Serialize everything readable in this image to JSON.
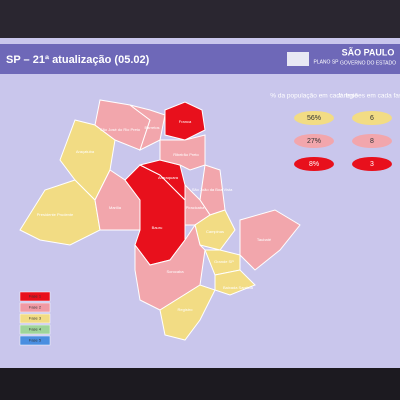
{
  "header": {
    "title": "SP – 21ª atualização (05.02)",
    "logo_plano": "PLANO SP",
    "logo_gov": "SÃO PAULO",
    "logo_gov_sub": "GOVERNO DO ESTADO"
  },
  "table": {
    "headers": [
      "% da população em cada fase",
      "# regiões em cada fase"
    ],
    "rows": [
      {
        "pop": "56%",
        "regions": "6",
        "color": "#f2dc84"
      },
      {
        "pop": "27%",
        "regions": "8",
        "color": "#f2a6ac"
      },
      {
        "pop": "8%",
        "regions": "3",
        "color": "#e8101c"
      }
    ]
  },
  "legend": [
    {
      "label": "Fase 1",
      "color": "#e8101c"
    },
    {
      "label": "Fase 2",
      "color": "#f09aa4"
    },
    {
      "label": "Fase 3",
      "color": "#f2dc84"
    },
    {
      "label": "Fase 4",
      "color": "#9ed49a"
    },
    {
      "label": "Fase 5",
      "color": "#4a8ee0"
    }
  ],
  "regions": [
    {
      "label": "Presidente Prudente",
      "color": "#f2dc84"
    },
    {
      "label": "Araçatuba",
      "color": "#f2dc84"
    },
    {
      "label": "São José do Rio Preto",
      "color": "#f2a6ac"
    },
    {
      "label": "Barretos",
      "color": "#f2a6ac"
    },
    {
      "label": "Franca",
      "color": "#e8101c"
    },
    {
      "label": "Marília",
      "color": "#f2a6ac"
    },
    {
      "label": "Bauru",
      "color": "#e8101c"
    },
    {
      "label": "Araraquara",
      "color": "#e8101c"
    },
    {
      "label": "Ribeirão Preto",
      "color": "#f2a6ac"
    },
    {
      "label": "São João da Boa Vista",
      "color": "#f2a6ac"
    },
    {
      "label": "Piracicaba",
      "color": "#f2a6ac"
    },
    {
      "label": "Campinas",
      "color": "#f2dc84"
    },
    {
      "label": "Taubaté",
      "color": "#f2a6ac"
    },
    {
      "label": "Grande SP",
      "color": "#f2dc84"
    },
    {
      "label": "Sorocaba",
      "color": "#f2a6ac"
    },
    {
      "label": "Registro",
      "color": "#f2dc84"
    },
    {
      "label": "Baixada Santista",
      "color": "#f2dc84"
    }
  ]
}
